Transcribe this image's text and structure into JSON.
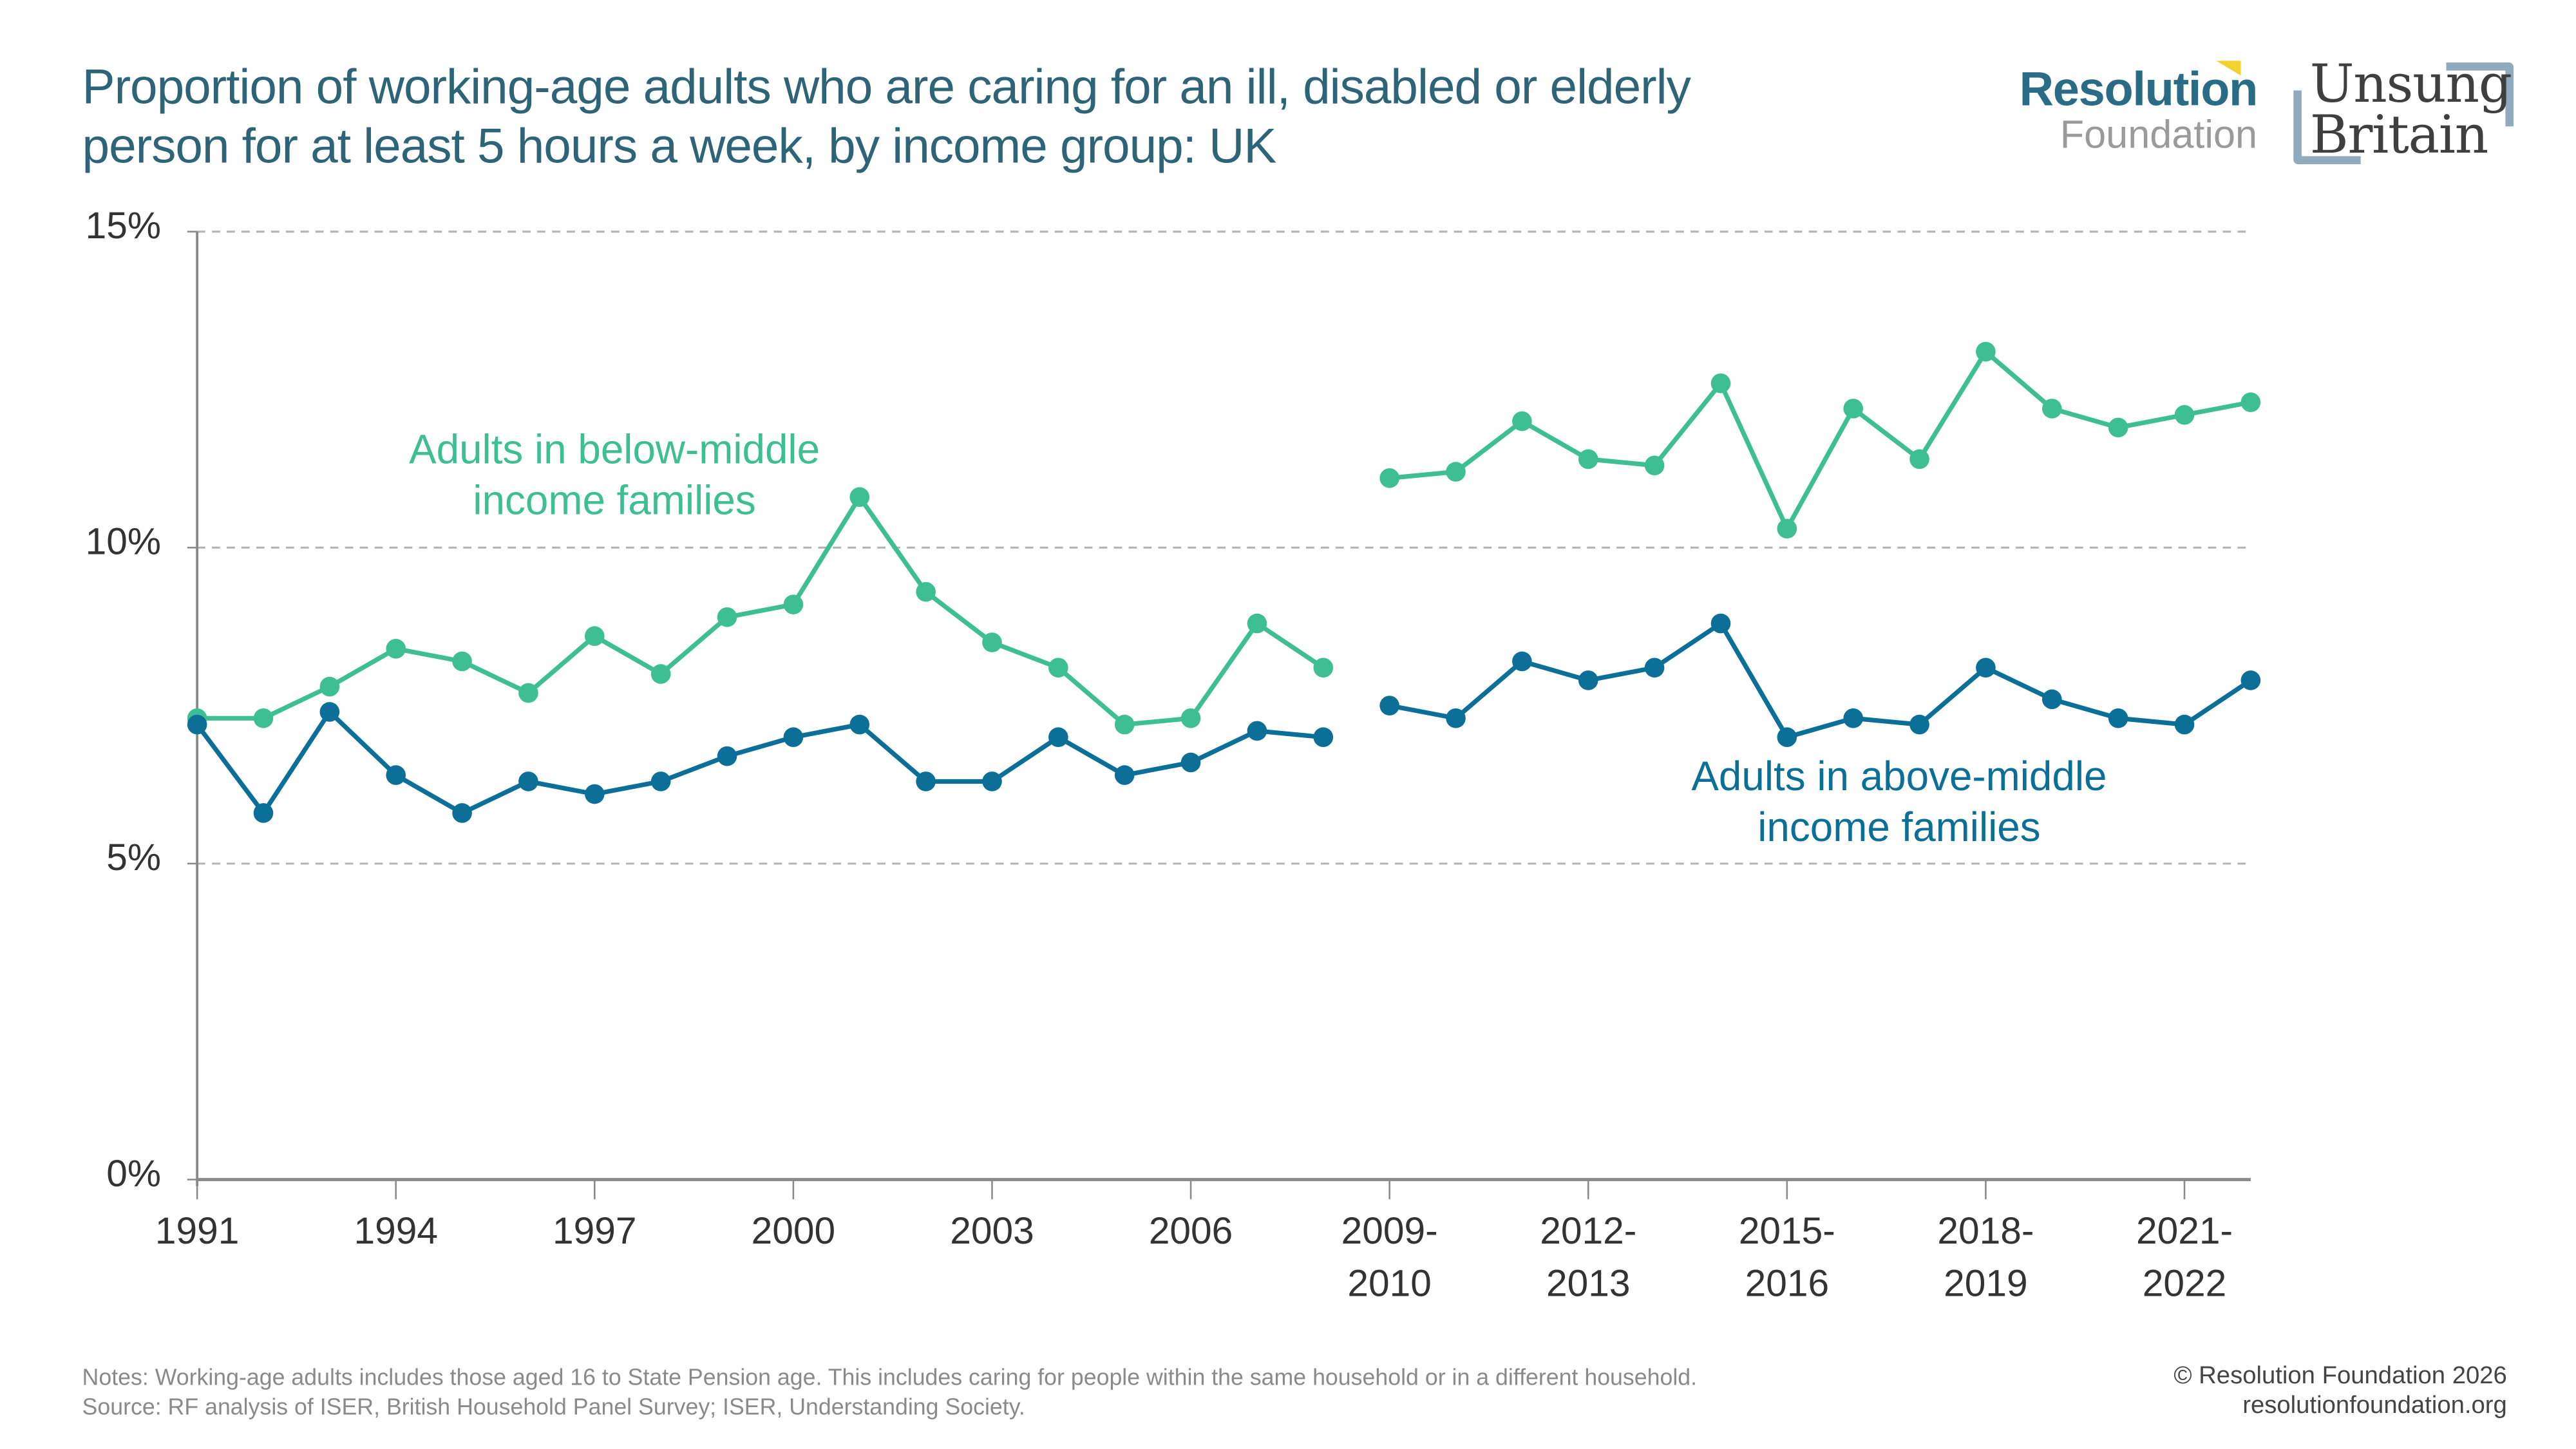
{
  "header": {
    "title_line1": "Proportion of working-age adults who are caring for an ill, disabled or elderly",
    "title_line2": "person for at least 5 hours a week, by income group: UK"
  },
  "logos": {
    "resolution_line1": "Resolution",
    "resolution_line2": "Foundation",
    "unsung_line1": "Unsung",
    "unsung_line2": "Britain"
  },
  "colors": {
    "below_middle": "#3dbf93",
    "above_middle": "#0b6f97",
    "title": "#2d6478",
    "grid": "#b4b4b4",
    "axis": "#8a8a8a",
    "tick_text": "#333333"
  },
  "chart_data": {
    "type": "line",
    "title": "Proportion of working-age adults who are caring for an ill, disabled or elderly person for at least 5 hours a week, by income group: UK",
    "xlabel": "",
    "ylabel": "",
    "ylim": [
      0,
      15
    ],
    "yticks": [
      0,
      5,
      10,
      15
    ],
    "ytick_labels": [
      "0%",
      "5%",
      "10%",
      "15%"
    ],
    "grid": true,
    "x": [
      "1991",
      "1992",
      "1993",
      "1994",
      "1995",
      "1996",
      "1997",
      "1998",
      "1999",
      "2000",
      "2001",
      "2002",
      "2003",
      "2004",
      "2005",
      "2006",
      "2007",
      "2008",
      "2009-2010",
      "2010-2011",
      "2011-2012",
      "2012-2013",
      "2013-2014",
      "2014-2015",
      "2015-2016",
      "2016-2017",
      "2017-2018",
      "2018-2019",
      "2019-2020",
      "2020-2021",
      "2021-2022",
      "2022-2023"
    ],
    "gap_after_index": 17,
    "xtick_indices": [
      0,
      3,
      6,
      9,
      12,
      15,
      18,
      21,
      24,
      27,
      30
    ],
    "xtick_labels": [
      [
        "1991"
      ],
      [
        "1994"
      ],
      [
        "1997"
      ],
      [
        "2000"
      ],
      [
        "2003"
      ],
      [
        "2006"
      ],
      [
        "2009-",
        "2010"
      ],
      [
        "2012-",
        "2013"
      ],
      [
        "2015-",
        "2016"
      ],
      [
        "2018-",
        "2019"
      ],
      [
        "2021-",
        "2022"
      ]
    ],
    "series": [
      {
        "name": "Adults in below-middle income families",
        "label_lines": [
          "Adults in below-middle",
          "income families"
        ],
        "values": [
          7.3,
          7.3,
          7.8,
          8.4,
          8.2,
          7.7,
          8.6,
          8.0,
          8.9,
          9.1,
          10.8,
          9.3,
          8.5,
          8.1,
          7.2,
          7.3,
          8.8,
          8.1,
          11.1,
          11.2,
          12.0,
          11.4,
          11.3,
          12.6,
          10.3,
          12.2,
          11.4,
          13.1,
          12.2,
          11.9,
          12.1,
          12.3
        ]
      },
      {
        "name": "Adults in above-middle income families",
        "label_lines": [
          "Adults in above-middle",
          "income families"
        ],
        "values": [
          7.2,
          5.8,
          7.4,
          6.4,
          5.8,
          6.3,
          6.1,
          6.3,
          6.7,
          7.0,
          7.2,
          6.3,
          6.3,
          7.0,
          6.4,
          6.6,
          7.1,
          7.0,
          7.5,
          7.3,
          8.2,
          7.9,
          8.1,
          8.8,
          7.0,
          7.3,
          7.2,
          8.1,
          7.6,
          7.3,
          7.2,
          7.9
        ]
      }
    ]
  },
  "footer": {
    "notes": "Notes: Working-age adults includes those aged 16 to State Pension age. This includes caring for people within the same household or in a different household.",
    "source": "Source: RF analysis of ISER, British Household Panel Survey; ISER, Understanding Society.",
    "copyright": "© Resolution Foundation 2026",
    "website": "resolutionfoundation.org"
  }
}
